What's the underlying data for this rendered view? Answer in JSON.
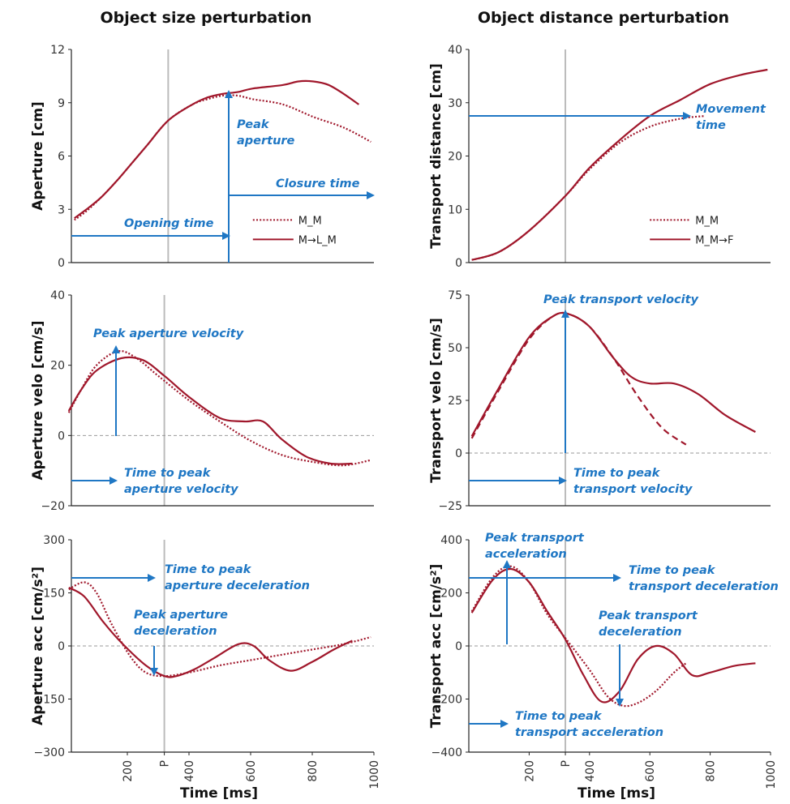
{
  "figure": {
    "col_titles": [
      "Object size perturbation",
      "Object distance perturbation"
    ],
    "xlabel": "Time [ms]",
    "x_tick_labels": [
      "200",
      "P",
      "400",
      "600",
      "800",
      "1000"
    ],
    "colors": {
      "curve": "#a0172b",
      "annotation": "#1f77c4",
      "phase_line": "#bbbbbb",
      "zero_line": "#999999"
    }
  },
  "chart_data": [
    {
      "id": "aperture",
      "type": "line",
      "ylabel": "Aperture [cm]",
      "xlim": [
        0,
        1000
      ],
      "ylim": [
        0,
        12
      ],
      "yticks": [
        0,
        3,
        6,
        9,
        12
      ],
      "p_line": 320,
      "legend": {
        "position": "lower-right",
        "entries": [
          "M_M",
          "M→L_M"
        ]
      },
      "series": [
        {
          "name": "M_M",
          "style": "dotted",
          "x": [
            10,
            50,
            100,
            150,
            200,
            250,
            320,
            400,
            450,
            500,
            550,
            600,
            700,
            800,
            900,
            990
          ],
          "y": [
            2.4,
            2.9,
            3.7,
            4.6,
            5.6,
            6.6,
            8.0,
            8.9,
            9.2,
            9.4,
            9.4,
            9.2,
            8.9,
            8.2,
            7.6,
            6.8
          ]
        },
        {
          "name": "M→L_M",
          "style": "solid",
          "x": [
            10,
            50,
            100,
            150,
            200,
            250,
            320,
            400,
            450,
            500,
            550,
            600,
            700,
            750,
            800,
            850,
            900,
            950
          ],
          "y": [
            2.5,
            3.0,
            3.7,
            4.6,
            5.6,
            6.6,
            8.0,
            8.9,
            9.3,
            9.5,
            9.6,
            9.8,
            10.0,
            10.2,
            10.2,
            10.0,
            9.5,
            8.9
          ]
        }
      ],
      "annotations": [
        {
          "text": [
            "Peak",
            "aperture"
          ]
        },
        {
          "text": [
            "Closure time"
          ]
        },
        {
          "text": [
            "Opening time"
          ]
        }
      ]
    },
    {
      "id": "transport",
      "type": "line",
      "ylabel": "Transport distance [cm]",
      "xlim": [
        0,
        1000
      ],
      "ylim": [
        0,
        40
      ],
      "yticks": [
        0,
        10,
        20,
        30,
        40
      ],
      "p_line": 320,
      "legend": {
        "position": "lower-right",
        "entries": [
          "M_M",
          "M_M→F"
        ]
      },
      "series": [
        {
          "name": "M_M",
          "style": "dotted",
          "x": [
            10,
            100,
            200,
            320,
            400,
            500,
            600,
            700,
            780
          ],
          "y": [
            0.5,
            2.0,
            6.0,
            12.5,
            17.5,
            22.5,
            25.5,
            27.0,
            27.5
          ]
        },
        {
          "name": "M_M→F",
          "style": "solid",
          "x": [
            10,
            100,
            200,
            320,
            400,
            500,
            600,
            700,
            800,
            900,
            990
          ],
          "y": [
            0.5,
            2.0,
            6.0,
            12.5,
            17.8,
            23.0,
            27.5,
            30.5,
            33.5,
            35.2,
            36.2
          ]
        }
      ],
      "annotations": [
        {
          "text": [
            "Movement",
            "time"
          ]
        }
      ]
    },
    {
      "id": "aperture_velo",
      "type": "line",
      "ylabel": "Aperture velo [cm/s]",
      "xlim": [
        0,
        1000
      ],
      "ylim": [
        -20,
        40
      ],
      "yticks": [
        -20,
        0,
        20,
        40
      ],
      "p_line": 320,
      "series": [
        {
          "name": "M_M",
          "style": "dotted",
          "x": [
            10,
            50,
            100,
            170,
            230,
            300,
            400,
            500,
            600,
            700,
            800,
            900,
            990
          ],
          "y": [
            6.5,
            13,
            20,
            24,
            22,
            17,
            10,
            4,
            -1.5,
            -5.5,
            -7.5,
            -8.5,
            -7
          ]
        },
        {
          "name": "M→L_M",
          "style": "solid",
          "x": [
            10,
            50,
            100,
            180,
            250,
            320,
            400,
            500,
            580,
            640,
            700,
            780,
            860,
            930
          ],
          "y": [
            7,
            13,
            18.5,
            22,
            21.5,
            17,
            11,
            5,
            4,
            4,
            -1,
            -6,
            -8,
            -8
          ]
        }
      ],
      "annotations": [
        {
          "text": [
            "Peak aperture velocity"
          ]
        },
        {
          "text": [
            "Time to peak",
            "aperture velocity"
          ]
        }
      ]
    },
    {
      "id": "transport_velo",
      "type": "line",
      "ylabel": "Transport velo [cm/s]",
      "xlim": [
        0,
        1000
      ],
      "ylim": [
        -25,
        75
      ],
      "yticks": [
        -25,
        0,
        25,
        50,
        75
      ],
      "p_line": 320,
      "series": [
        {
          "name": "M_M",
          "style": "dashed",
          "x": [
            10,
            100,
            200,
            280,
            330,
            400,
            480,
            560,
            640,
            720
          ],
          "y": [
            7,
            30,
            54,
            65,
            66,
            60,
            45,
            27,
            12,
            4
          ]
        },
        {
          "name": "M_M→F",
          "style": "solid",
          "x": [
            10,
            100,
            200,
            280,
            330,
            400,
            480,
            540,
            600,
            680,
            760,
            850,
            950
          ],
          "y": [
            8,
            31,
            55,
            65,
            66,
            60,
            45,
            36,
            33,
            33,
            28,
            18,
            10
          ]
        }
      ],
      "annotations": [
        {
          "text": [
            "Peak transport velocity"
          ]
        },
        {
          "text": [
            "Time to peak",
            "transport velocity"
          ]
        }
      ]
    },
    {
      "id": "aperture_acc",
      "type": "line",
      "ylabel": "Aperture acc [cm/s²]",
      "xlim": [
        0,
        1000
      ],
      "ylim": [
        -300,
        300
      ],
      "yticks": [
        -300,
        -150,
        0,
        150,
        300
      ],
      "p_line": 320,
      "series": [
        {
          "name": "M_M",
          "style": "dotted",
          "x": [
            10,
            60,
            100,
            150,
            210,
            260,
            320,
            400,
            500,
            600,
            700,
            800,
            900,
            990
          ],
          "y": [
            160,
            180,
            150,
            60,
            -30,
            -75,
            -85,
            -75,
            -55,
            -40,
            -25,
            -10,
            5,
            25
          ]
        },
        {
          "name": "M→L_M",
          "style": "solid",
          "x": [
            10,
            60,
            120,
            180,
            260,
            320,
            360,
            420,
            480,
            560,
            610,
            660,
            730,
            800,
            870,
            930
          ],
          "y": [
            165,
            140,
            70,
            10,
            -55,
            -85,
            -85,
            -65,
            -35,
            5,
            0,
            -40,
            -70,
            -45,
            -10,
            15
          ]
        }
      ],
      "annotations": [
        {
          "text": [
            "Time to peak",
            "aperture deceleration"
          ]
        },
        {
          "text": [
            "Peak aperture",
            "deceleration"
          ]
        }
      ]
    },
    {
      "id": "transport_acc",
      "type": "line",
      "ylabel": "Transport acc [cm/s²]",
      "xlim": [
        0,
        1000
      ],
      "ylim": [
        -400,
        400
      ],
      "yticks": [
        -400,
        -200,
        0,
        200,
        400
      ],
      "p_line": 320,
      "series": [
        {
          "name": "M_M",
          "style": "dotted",
          "x": [
            10,
            80,
            140,
            200,
            260,
            320,
            400,
            460,
            510,
            560,
            620,
            680,
            720
          ],
          "y": [
            130,
            260,
            300,
            240,
            120,
            30,
            -90,
            -190,
            -225,
            -215,
            -170,
            -100,
            -65
          ]
        },
        {
          "name": "M_M→F",
          "style": "solid",
          "x": [
            10,
            80,
            140,
            200,
            260,
            320,
            380,
            440,
            500,
            560,
            620,
            680,
            740,
            800,
            880,
            950
          ],
          "y": [
            125,
            250,
            290,
            240,
            130,
            25,
            -110,
            -210,
            -170,
            -50,
            0,
            -30,
            -110,
            -100,
            -75,
            -65
          ]
        }
      ],
      "annotations": [
        {
          "text": [
            "Peak transport",
            "acceleration"
          ]
        },
        {
          "text": [
            "Time to peak",
            "transport deceleration"
          ]
        },
        {
          "text": [
            "Peak transport",
            "deceleration"
          ]
        },
        {
          "text": [
            "Time to peak",
            "transport acceleration"
          ]
        }
      ]
    }
  ]
}
